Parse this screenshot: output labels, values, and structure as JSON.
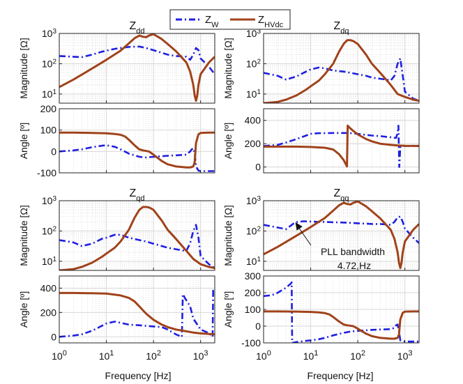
{
  "colors": {
    "zw": "#1f1fe0",
    "zhvdc": "#a0421a",
    "grid": "#d7d7d7",
    "axis": "#222222"
  },
  "legend": [
    {
      "label": "Z",
      "sub": "W"
    },
    {
      "label": "Z",
      "sub": "HVdc"
    }
  ],
  "xlabel": "Frequency [Hz]",
  "xticks": [
    {
      "base": "10",
      "exp": "0"
    },
    {
      "base": "10",
      "exp": "1"
    },
    {
      "base": "10",
      "exp": "2"
    },
    {
      "base": "10",
      "exp": "3"
    }
  ],
  "annotation": {
    "line1": "PLL bandwidth",
    "line2": "4.72 Hz",
    "freq": 4.72
  },
  "chart_data": [
    {
      "type": "line",
      "panel": "dd-mag",
      "title": "Z",
      "title_sub": "dd",
      "ylabel": "Magnitude [Ω]",
      "yscale": "log",
      "ylim": [
        5,
        1000
      ],
      "yticks": [
        {
          "v": 10,
          "base": "10",
          "exp": "1"
        },
        {
          "v": 100,
          "base": "10",
          "exp": "2"
        },
        {
          "v": 1000,
          "base": "10",
          "exp": "3"
        }
      ],
      "xlim": [
        1,
        2000
      ],
      "series": [
        {
          "name": "ZW",
          "x": [
            1,
            2,
            3,
            5,
            8,
            10,
            15,
            20,
            30,
            50,
            70,
            100,
            150,
            200,
            300,
            400,
            500,
            600,
            700,
            800,
            900,
            1000,
            1500,
            2000
          ],
          "y": [
            180,
            170,
            165,
            200,
            250,
            270,
            310,
            330,
            360,
            370,
            330,
            280,
            230,
            200,
            180,
            175,
            170,
            135,
            200,
            330,
            280,
            150,
            80,
            45
          ]
        },
        {
          "name": "ZHVdc",
          "x": [
            1,
            2,
            5,
            10,
            20,
            30,
            40,
            50,
            60,
            70,
            80,
            100,
            150,
            200,
            300,
            500,
            600,
            700,
            750,
            800,
            850,
            900,
            1000,
            1500,
            2000
          ],
          "y": [
            17,
            30,
            70,
            135,
            270,
            470,
            700,
            850,
            780,
            750,
            850,
            950,
            650,
            450,
            260,
            110,
            55,
            20,
            9,
            6,
            9,
            20,
            45,
            110,
            170
          ]
        }
      ]
    },
    {
      "type": "line",
      "panel": "dd-ang",
      "title": "",
      "title_sub": "",
      "ylabel": "Angle [º]",
      "yscale": "linear",
      "ylim": [
        -100,
        200
      ],
      "yticks": [
        {
          "v": -100,
          "t": "-100"
        },
        {
          "v": 0,
          "t": "0"
        },
        {
          "v": 100,
          "t": "100"
        },
        {
          "v": 200,
          "t": "200"
        }
      ],
      "xlim": [
        1,
        2000
      ],
      "series": [
        {
          "name": "ZW",
          "x": [
            1,
            2,
            3,
            5,
            8,
            10,
            15,
            20,
            30,
            50,
            70,
            100,
            150,
            200,
            300,
            500,
            600,
            650,
            700,
            750,
            800,
            900,
            1000,
            1500,
            2000
          ],
          "y": [
            0,
            5,
            10,
            20,
            27,
            29,
            22,
            10,
            -10,
            -25,
            -28,
            -25,
            -22,
            -20,
            -18,
            -15,
            0,
            10,
            15,
            -5,
            -70,
            -90,
            -92,
            -92,
            -92
          ]
        },
        {
          "name": "ZHVdc",
          "x": [
            1,
            2,
            5,
            10,
            15,
            20,
            25,
            30,
            40,
            50,
            60,
            80,
            100,
            150,
            200,
            300,
            500,
            600,
            700,
            750,
            800,
            900,
            1000,
            1500,
            2000
          ],
          "y": [
            88,
            88,
            87,
            85,
            82,
            78,
            70,
            55,
            28,
            10,
            5,
            0,
            -15,
            -45,
            -60,
            -70,
            -75,
            -75,
            -70,
            -50,
            40,
            80,
            87,
            88,
            88
          ]
        }
      ]
    },
    {
      "type": "line",
      "panel": "dq-mag",
      "title": "Z",
      "title_sub": "dq",
      "ylabel": "Magnitude [Ω]",
      "yscale": "log",
      "ylim": [
        5,
        1000
      ],
      "yticks": [
        {
          "v": 10,
          "base": "10",
          "exp": "1"
        },
        {
          "v": 100,
          "base": "10",
          "exp": "2"
        },
        {
          "v": 1000,
          "base": "10",
          "exp": "3"
        }
      ],
      "xlim": [
        1,
        2000
      ],
      "series": [
        {
          "name": "ZW",
          "x": [
            1,
            2,
            3,
            5,
            8,
            10,
            15,
            20,
            30,
            50,
            70,
            100,
            150,
            200,
            300,
            400,
            500,
            600,
            700,
            800,
            900,
            1000,
            1500,
            2000
          ],
          "y": [
            50,
            40,
            30,
            38,
            55,
            65,
            75,
            70,
            60,
            55,
            50,
            45,
            40,
            35,
            32,
            30,
            28,
            40,
            100,
            150,
            40,
            12,
            7,
            6
          ]
        },
        {
          "name": "ZHVdc",
          "x": [
            1,
            2,
            3,
            5,
            8,
            10,
            15,
            20,
            30,
            40,
            50,
            60,
            70,
            80,
            100,
            150,
            200,
            300,
            500,
            700,
            1000,
            1500,
            2000
          ],
          "y": [
            5,
            5.5,
            6.5,
            9,
            14,
            18,
            28,
            45,
            100,
            250,
            450,
            600,
            600,
            560,
            450,
            200,
            100,
            50,
            20,
            10,
            8,
            6.5,
            6
          ]
        }
      ]
    },
    {
      "type": "line",
      "panel": "dq-ang",
      "title": "",
      "title_sub": "",
      "ylabel": "Angle [º]",
      "yscale": "linear",
      "ylim": [
        -50,
        500
      ],
      "yticks": [
        {
          "v": 0,
          "t": "0"
        },
        {
          "v": 200,
          "t": "200"
        },
        {
          "v": 400,
          "t": "400"
        }
      ],
      "xlim": [
        1,
        2000
      ],
      "series": [
        {
          "name": "ZW",
          "x": [
            1,
            2,
            3,
            5,
            8,
            10,
            15,
            20,
            30,
            50,
            70,
            100,
            150,
            200,
            300,
            500,
            600,
            650,
            700,
            730,
            760,
            800,
            1000,
            1500,
            2000
          ],
          "y": [
            180,
            190,
            210,
            240,
            270,
            285,
            290,
            290,
            292,
            292,
            290,
            285,
            275,
            270,
            265,
            255,
            250,
            250,
            290,
            355,
            0,
            170,
            180,
            182,
            182
          ]
        },
        {
          "name": "ZHVdc",
          "x": [
            1,
            2,
            5,
            10,
            20,
            30,
            40,
            50,
            59,
            60,
            61,
            70,
            80,
            100,
            150,
            200,
            300,
            500,
            700,
            1000,
            2000
          ],
          "y": [
            175,
            175,
            175,
            172,
            165,
            150,
            110,
            60,
            5,
            180,
            355,
            330,
            310,
            280,
            240,
            220,
            200,
            190,
            185,
            182,
            180
          ]
        }
      ]
    },
    {
      "type": "line",
      "panel": "qd-mag",
      "title": "Z",
      "title_sub": "qd",
      "ylabel": "Magnitude [Ω]",
      "yscale": "log",
      "ylim": [
        5,
        1000
      ],
      "yticks": [
        {
          "v": 10,
          "base": "10",
          "exp": "1"
        },
        {
          "v": 100,
          "base": "10",
          "exp": "2"
        },
        {
          "v": 1000,
          "base": "10",
          "exp": "3"
        }
      ],
      "xlim": [
        1,
        2000
      ],
      "series": [
        {
          "name": "ZW",
          "x": [
            1,
            2,
            3,
            5,
            8,
            10,
            15,
            20,
            30,
            50,
            70,
            100,
            150,
            200,
            300,
            400,
            500,
            600,
            700,
            800,
            900,
            1000,
            1500,
            2000
          ],
          "y": [
            50,
            42,
            32,
            38,
            55,
            60,
            75,
            75,
            60,
            50,
            45,
            38,
            32,
            28,
            25,
            23,
            22,
            40,
            100,
            160,
            60,
            15,
            8,
            6
          ]
        },
        {
          "name": "ZHVdc",
          "x": [
            1,
            2,
            3,
            5,
            8,
            10,
            15,
            20,
            30,
            40,
            50,
            60,
            70,
            80,
            100,
            150,
            200,
            300,
            500,
            700,
            1000,
            1500,
            2000
          ],
          "y": [
            5,
            5.5,
            6.5,
            9,
            14,
            18,
            28,
            45,
            110,
            280,
            500,
            620,
            620,
            600,
            500,
            220,
            110,
            55,
            22,
            12,
            8,
            6.5,
            6
          ]
        }
      ]
    },
    {
      "type": "line",
      "panel": "qd-ang",
      "title": "",
      "title_sub": "",
      "ylabel": "Angle [º]",
      "yscale": "linear",
      "ylim": [
        -50,
        500
      ],
      "yticks": [
        {
          "v": 0,
          "t": "0"
        },
        {
          "v": 200,
          "t": "200"
        },
        {
          "v": 400,
          "t": "400"
        }
      ],
      "xlim": [
        1,
        2000
      ],
      "series": [
        {
          "name": "ZW",
          "x": [
            1,
            2,
            3,
            5,
            8,
            10,
            15,
            20,
            30,
            50,
            70,
            100,
            150,
            200,
            300,
            400,
            420,
            440,
            460,
            500,
            600,
            700,
            1000,
            1500,
            1800,
            1850,
            1900,
            2000
          ],
          "y": [
            0,
            10,
            20,
            50,
            90,
            110,
            125,
            115,
            100,
            95,
            90,
            85,
            80,
            60,
            20,
            0,
            350,
            340,
            320,
            300,
            250,
            150,
            60,
            30,
            0,
            380,
            370,
            360
          ]
        },
        {
          "name": "ZHVdc",
          "x": [
            1,
            2,
            5,
            10,
            20,
            30,
            40,
            50,
            70,
            100,
            150,
            200,
            300,
            500,
            700,
            1000,
            2000
          ],
          "y": [
            360,
            360,
            358,
            355,
            340,
            320,
            290,
            250,
            190,
            140,
            100,
            80,
            60,
            45,
            35,
            28,
            20
          ]
        }
      ]
    },
    {
      "type": "line",
      "panel": "qq-mag",
      "title": "Z",
      "title_sub": "qq",
      "ylabel": "Magnitude [Ω]",
      "yscale": "log",
      "ylim": [
        5,
        1000
      ],
      "yticks": [
        {
          "v": 10,
          "base": "10",
          "exp": "1"
        },
        {
          "v": 100,
          "base": "10",
          "exp": "2"
        },
        {
          "v": 1000,
          "base": "10",
          "exp": "3"
        }
      ],
      "xlim": [
        1,
        2000
      ],
      "series": [
        {
          "name": "ZW",
          "x": [
            1,
            2,
            3,
            4.72,
            7,
            10,
            15,
            20,
            30,
            50,
            70,
            100,
            150,
            200,
            300,
            400,
            500,
            600,
            700,
            800,
            900,
            1000,
            1500,
            2000
          ],
          "y": [
            160,
            130,
            115,
            195,
            210,
            205,
            200,
            200,
            195,
            190,
            185,
            180,
            175,
            170,
            170,
            165,
            160,
            200,
            280,
            300,
            200,
            120,
            60,
            40
          ]
        },
        {
          "name": "ZHVdc",
          "x": [
            1,
            2,
            5,
            10,
            20,
            30,
            40,
            50,
            60,
            70,
            80,
            100,
            150,
            200,
            300,
            500,
            600,
            700,
            750,
            800,
            850,
            900,
            1000,
            1500,
            2000
          ],
          "y": [
            17,
            30,
            70,
            135,
            270,
            470,
            700,
            850,
            780,
            750,
            850,
            950,
            650,
            450,
            260,
            110,
            55,
            20,
            9,
            6,
            9,
            20,
            45,
            110,
            170
          ]
        }
      ]
    },
    {
      "type": "line",
      "panel": "qq-ang",
      "title": "",
      "title_sub": "",
      "ylabel": "Angle [º]",
      "yscale": "linear",
      "ylim": [
        -100,
        300
      ],
      "yticks": [
        {
          "v": -100,
          "t": "-100"
        },
        {
          "v": 0,
          "t": "0"
        },
        {
          "v": 100,
          "t": "100"
        },
        {
          "v": 200,
          "t": "200"
        },
        {
          "v": 300,
          "t": "300"
        }
      ],
      "xlim": [
        1,
        2000
      ],
      "series": [
        {
          "name": "ZW",
          "x": [
            1,
            1.5,
            2,
            3,
            3.8,
            3.95,
            4.05,
            5,
            8,
            10,
            15,
            20,
            30,
            50,
            70,
            100,
            150,
            200,
            300,
            500,
            600,
            650,
            700,
            750,
            800,
            1000,
            1500,
            2000
          ],
          "y": [
            180,
            185,
            200,
            230,
            255,
            262,
            -100,
            -95,
            -88,
            -85,
            -78,
            -70,
            -55,
            -40,
            -32,
            -28,
            -25,
            -22,
            -20,
            -18,
            -10,
            5,
            10,
            -30,
            -85,
            -92,
            -92,
            -92
          ]
        },
        {
          "name": "ZHVdc",
          "x": [
            1,
            2,
            5,
            10,
            15,
            20,
            25,
            30,
            40,
            50,
            60,
            80,
            100,
            150,
            200,
            300,
            500,
            600,
            700,
            750,
            800,
            900,
            1000,
            1500,
            2000
          ],
          "y": [
            88,
            88,
            87,
            85,
            82,
            78,
            70,
            55,
            28,
            10,
            5,
            0,
            -15,
            -45,
            -60,
            -70,
            -75,
            -75,
            -70,
            -50,
            40,
            80,
            87,
            88,
            88
          ]
        }
      ]
    }
  ]
}
